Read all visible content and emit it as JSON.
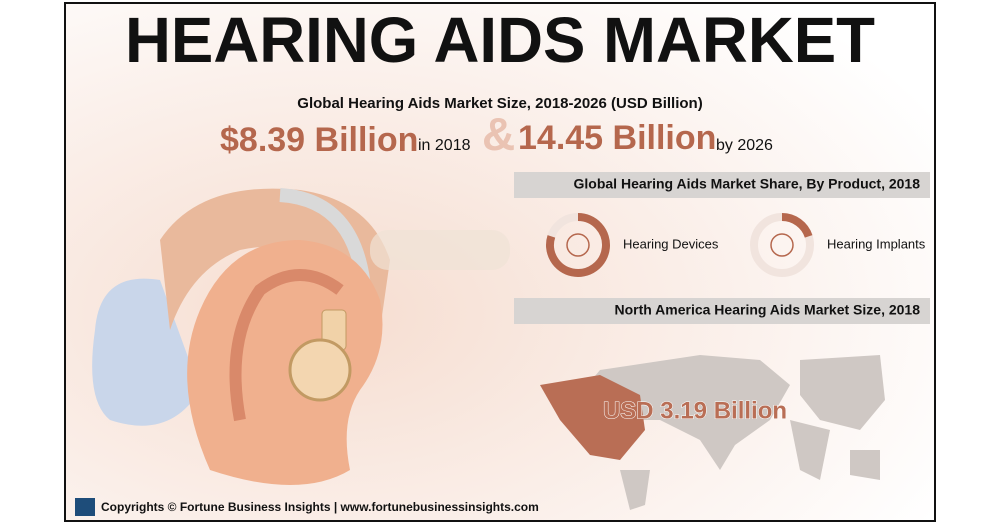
{
  "header": {
    "title": "HEARING AIDS MARKET",
    "subtitle": "Global Hearing Aids Market Size, 2018-2026 (USD Billion)"
  },
  "market_size": {
    "value_2018": "$8.39 Billion",
    "label_2018": "in 2018",
    "connector": "&",
    "value_2026": "14.45 Billion",
    "label_2026": "by 2026"
  },
  "product_share": {
    "title": "Global Hearing Aids Market Share, By Product, 2018",
    "segments": [
      {
        "name": "Hearing Devices",
        "share": 80
      },
      {
        "name": "Hearing Implants",
        "share": 20
      }
    ]
  },
  "north_america": {
    "title": "North America Hearing Aids Market Size, 2018",
    "value": "USD 3.19 Billion"
  },
  "footer": {
    "text": "Copyrights © Fortune Business Insights | www.fortunebusinessinsights.com"
  }
}
